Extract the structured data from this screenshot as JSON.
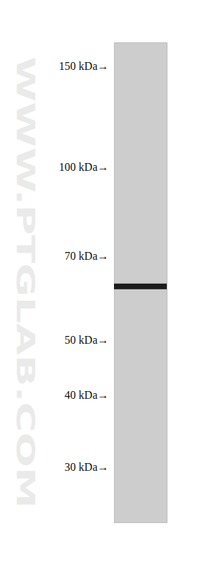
{
  "chart_data": {
    "type": "blot",
    "watermark": "WWW.PTGLAB.COM",
    "log": "y",
    "ylim": [
      24,
      165
    ],
    "yticks": [
      {
        "value": 150,
        "label": "150 kDa→"
      },
      {
        "value": 100,
        "label": "100 kDa→"
      },
      {
        "value": 70,
        "label": "70 kDa→"
      },
      {
        "value": 50,
        "label": "50 kDa→"
      },
      {
        "value": 40,
        "label": "40 kDa→"
      },
      {
        "value": 30,
        "label": "30 kDa→"
      }
    ],
    "tick_labels": "y",
    "values": [
      62
    ],
    "color": "#1c1c1c"
  }
}
